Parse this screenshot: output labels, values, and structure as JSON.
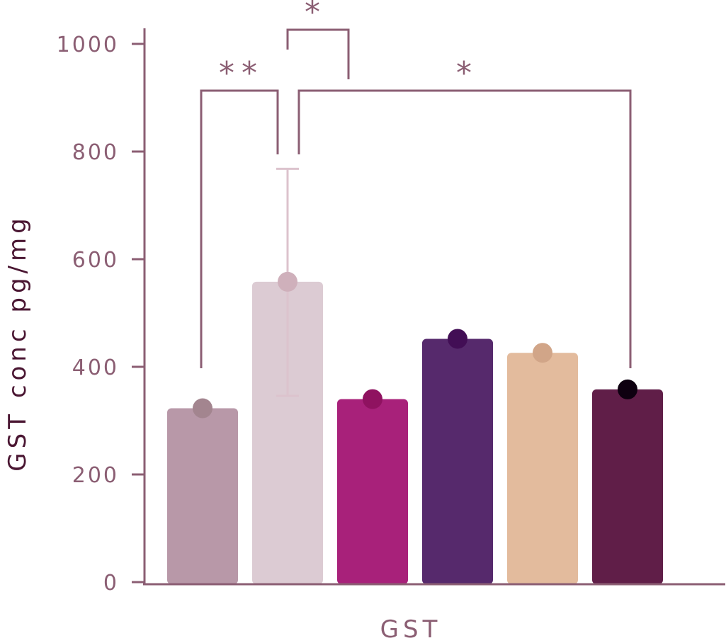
{
  "chart_data": {
    "type": "bar",
    "categories": [
      "",
      "",
      "",
      "",
      "",
      ""
    ],
    "values": [
      323,
      558,
      340,
      452,
      426,
      358
    ],
    "error_bars": [
      null,
      {
        "low": 346,
        "high": 768
      },
      null,
      null,
      null,
      null
    ],
    "bar_colors": [
      "#b898a8",
      "#dccbd3",
      "#a8217a",
      "#56296c",
      "#e3bb9d",
      "#601e48"
    ],
    "point_colors": [
      "#a3858f",
      "#cfb0bb",
      "#8f1260",
      "#420e55",
      "#d1a588",
      "#0e0010"
    ],
    "error_bar_color": "#dcc3cd",
    "xlabel": "GST",
    "ylabel": "GST conc pg/mg",
    "ylim": [
      0,
      1000
    ],
    "yticks": [
      "0",
      "200",
      "400",
      "600",
      "800",
      "1000"
    ],
    "grid": false,
    "significance": [
      {
        "label": "**",
        "from_bar": 0,
        "to_bar": 1
      },
      {
        "label": "*",
        "from_bar": 1,
        "to_bar": 1
      },
      {
        "label": "*",
        "from_bar": 1,
        "to_bar": 5
      }
    ]
  }
}
